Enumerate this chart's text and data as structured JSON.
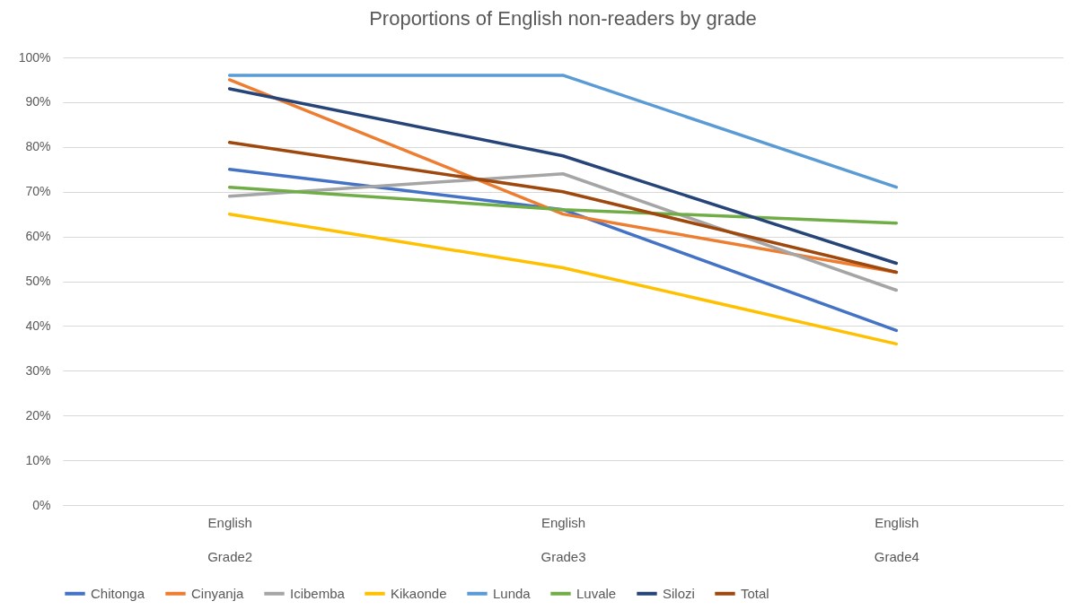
{
  "chart_data": {
    "type": "line",
    "title": "Proportions of English non-readers by grade",
    "categories": [
      "English\nGrade2",
      "English\nGrade3",
      "English\nGrade4"
    ],
    "series": [
      {
        "name": "Chitonga",
        "color": "#4472c4",
        "values": [
          75,
          66,
          39
        ]
      },
      {
        "name": "Cinyanja",
        "color": "#ed7d31",
        "values": [
          95,
          65,
          52
        ]
      },
      {
        "name": "Icibemba",
        "color": "#a5a5a5",
        "values": [
          69,
          74,
          48
        ]
      },
      {
        "name": "Kikaonde",
        "color": "#ffc000",
        "values": [
          65,
          53,
          36
        ]
      },
      {
        "name": "Lunda",
        "color": "#5b9bd5",
        "values": [
          96,
          96,
          71
        ]
      },
      {
        "name": "Luvale",
        "color": "#70ad47",
        "values": [
          71,
          66,
          63
        ]
      },
      {
        "name": "Silozi",
        "color": "#264478",
        "values": [
          93,
          78,
          54
        ]
      },
      {
        "name": "Total",
        "color": "#9e480e",
        "values": [
          81,
          70,
          52
        ]
      }
    ],
    "ylim": [
      0,
      100
    ],
    "yticks": [
      {
        "value": 0,
        "label": "0%"
      },
      {
        "value": 10,
        "label": "10%"
      },
      {
        "value": 20,
        "label": "20%"
      },
      {
        "value": 30,
        "label": "30%"
      },
      {
        "value": 40,
        "label": "40%"
      },
      {
        "value": 50,
        "label": "50%"
      },
      {
        "value": 60,
        "label": "60%"
      },
      {
        "value": 70,
        "label": "70%"
      },
      {
        "value": 80,
        "label": "80%"
      },
      {
        "value": 90,
        "label": "90%"
      },
      {
        "value": 100,
        "label": "100%"
      }
    ],
    "grid": "y",
    "legend": "bottom",
    "marker": "none",
    "line_style": "solid"
  }
}
